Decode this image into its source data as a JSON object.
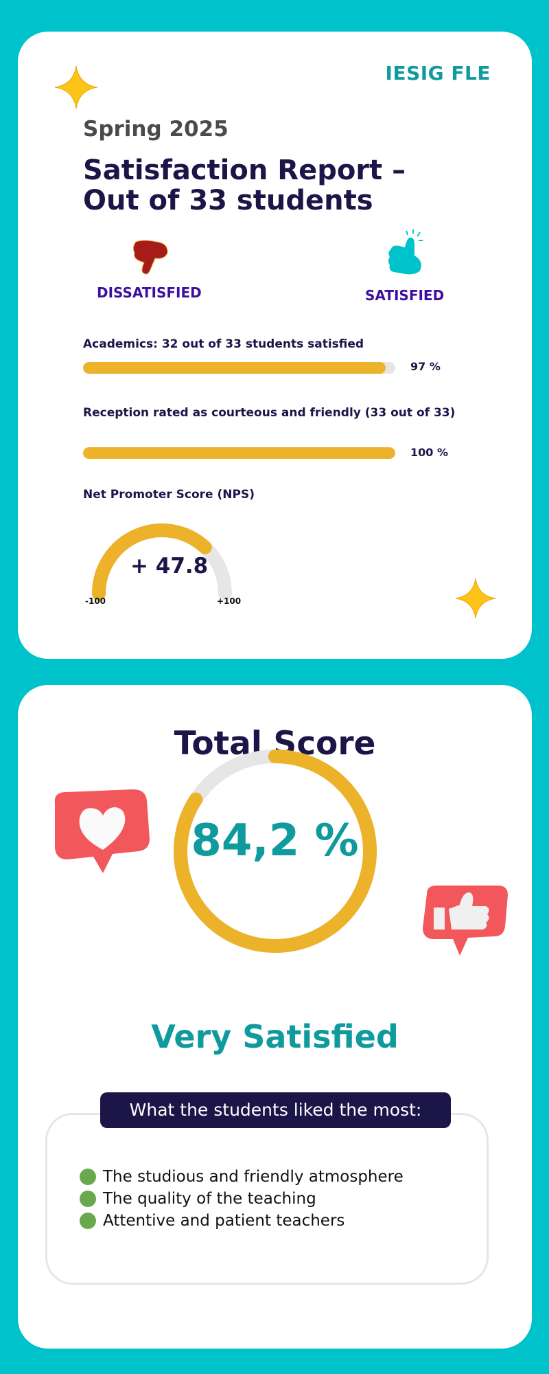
{
  "colors": {
    "background": "#00c2cb",
    "accent_teal": "#0f9a9e",
    "bar_fill": "#ecb22a",
    "track": "#e6e6e6",
    "navy": "#1c1548",
    "purple": "#3d0f9e",
    "bullet": "#6aa84f"
  },
  "header": {
    "brand": "IESIG FLE",
    "season": "Spring 2025",
    "title": "Satisfaction Report – Out of 33 students"
  },
  "legend": {
    "dissatisfied": "DISSATISFIED",
    "satisfied": "SATISFIED",
    "dissatisfied_icon": "thumbs-down-icon",
    "satisfied_icon": "thumbs-up-icon"
  },
  "metrics": [
    {
      "label": "Academics: 32 out of 33 students satisfied",
      "value_text": "97 %",
      "value": 97
    },
    {
      "label": "Reception rated as courteous and friendly (33 out of 33)",
      "value_text": "100 %",
      "value": 100
    }
  ],
  "nps": {
    "label": "Net Promoter Score (NPS)",
    "value_text": "+ 47.8",
    "value": 47.8,
    "min_label": "-100",
    "max_label": "+100",
    "min": -100,
    "max": 100
  },
  "total": {
    "title": "Total Score",
    "value_text": "84,2 %",
    "value": 84.2,
    "verdict": "Very Satisfied"
  },
  "liked": {
    "heading": "What the students liked the most:",
    "items": [
      "The studious and friendly atmosphere",
      "The quality of the teaching",
      "Attentive and patient teachers"
    ]
  }
}
